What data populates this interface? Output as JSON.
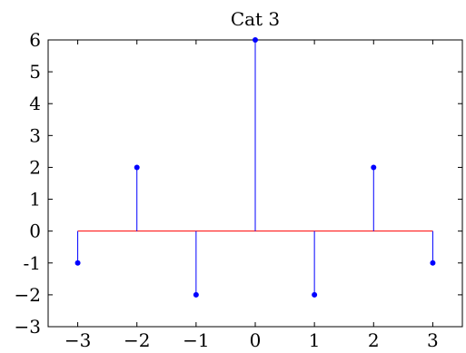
{
  "chart_data": {
    "type": "stem",
    "title": "Cat 3",
    "xlabel": "",
    "ylabel": "",
    "xlim": [
      -3.5,
      3.5
    ],
    "ylim": [
      -3,
      6
    ],
    "x": [
      -3,
      -2,
      -1,
      0,
      1,
      2,
      3
    ],
    "values": [
      -1,
      2,
      -2,
      6,
      -2,
      2,
      -1
    ],
    "baseline": 0,
    "xticks": [
      -3,
      -2,
      -1,
      0,
      1,
      2,
      3
    ],
    "xtick_labels": [
      "−3",
      "−2",
      "−1",
      "0",
      "1",
      "2",
      "3"
    ],
    "yticks": [
      -3,
      -2,
      -1,
      0,
      1,
      2,
      3,
      4,
      5,
      6
    ],
    "ytick_labels": [
      "−3",
      "−2",
      "-1",
      "0",
      "1",
      "2",
      "3",
      "4",
      "5",
      "6"
    ],
    "grid": false,
    "colors": {
      "stem": "#0000ff",
      "marker": "#0000ff",
      "baseline": "#ff0000",
      "axes": "#000000"
    }
  }
}
